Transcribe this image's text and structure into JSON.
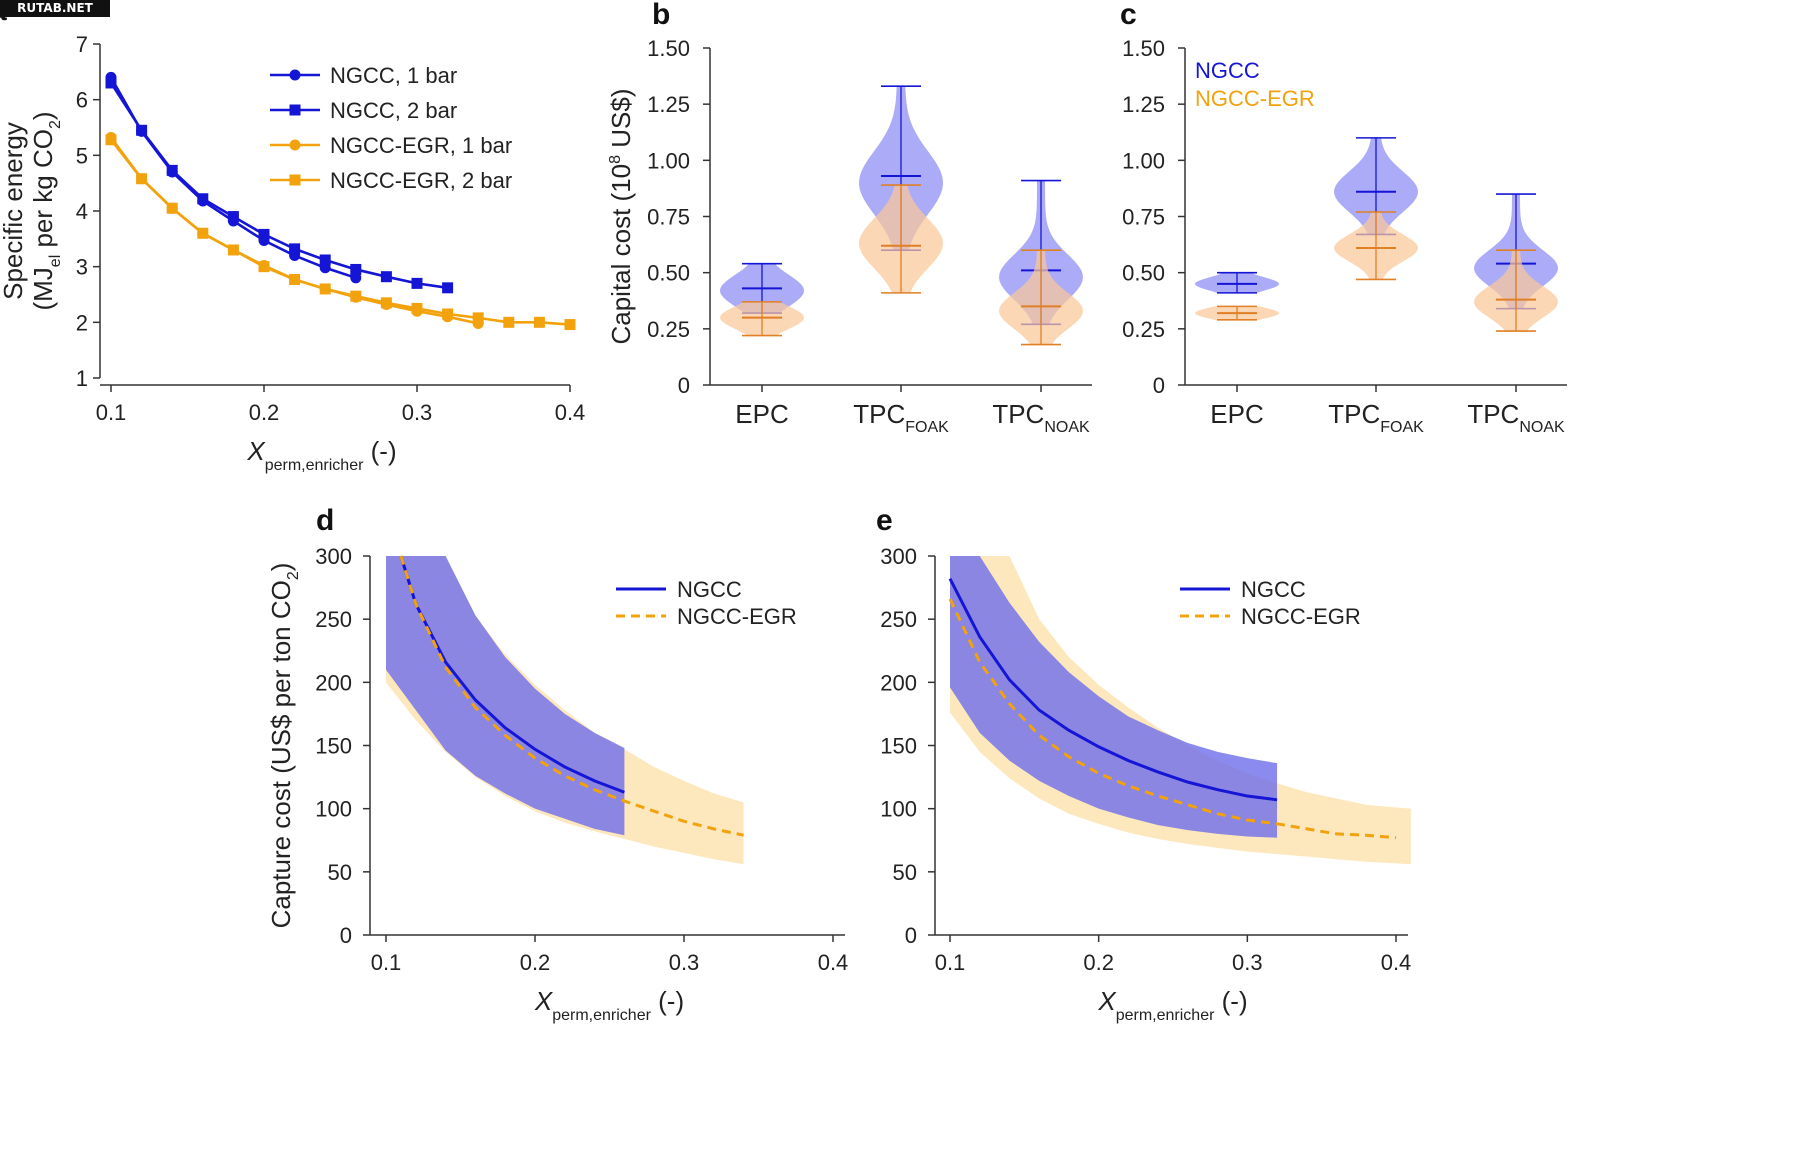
{
  "watermark": "RUTAB.NET",
  "colors": {
    "ngcc": "#1515d6",
    "ngcc_egr": "#f2a20d",
    "ngcc_violin": "#8b8bf4",
    "egr_violin": "#f9c79a",
    "ngcc_band": "#6a6aea",
    "egr_band": "#fde8bd",
    "egr_whisker": "#e07f25",
    "axis": "#333333"
  },
  "chart_data": [
    {
      "id": "a",
      "panel_letter": "a",
      "type": "line",
      "xlabel_main": "X",
      "xlabel_sub": "perm,enricher",
      "xlabel_suffix": " (-)",
      "ylabel_line1": "Specific energy",
      "ylabel_line2_pre": "(MJ",
      "ylabel_line2_sub1": "el",
      "ylabel_line2_mid": " per kg CO",
      "ylabel_line2_sub2": "2",
      "ylabel_line2_post": ")",
      "xlim": [
        0.1,
        0.4
      ],
      "ylim": [
        1,
        7
      ],
      "xticks": [
        0.1,
        0.2,
        0.3,
        0.4
      ],
      "xtick_labels": [
        "0.1",
        "0.2",
        "0.3",
        "0.4"
      ],
      "yticks": [
        1,
        2,
        3,
        4,
        5,
        6,
        7
      ],
      "ytick_labels": [
        "1",
        "2",
        "3",
        "4",
        "5",
        "6",
        "7"
      ],
      "legend_position": "top-right",
      "series": [
        {
          "name": "NGCC, 1 bar",
          "color_key": "ngcc",
          "marker": "circle",
          "x": [
            0.1,
            0.12,
            0.14,
            0.16,
            0.18,
            0.2,
            0.22,
            0.24,
            0.26
          ],
          "y": [
            6.4,
            5.43,
            4.7,
            4.18,
            3.82,
            3.47,
            3.2,
            2.98,
            2.8
          ]
        },
        {
          "name": "NGCC, 2 bar",
          "color_key": "ngcc",
          "marker": "square",
          "x": [
            0.1,
            0.12,
            0.14,
            0.16,
            0.18,
            0.2,
            0.22,
            0.24,
            0.26,
            0.28,
            0.3,
            0.32
          ],
          "y": [
            6.3,
            5.45,
            4.73,
            4.22,
            3.9,
            3.58,
            3.32,
            3.12,
            2.95,
            2.82,
            2.7,
            2.62
          ]
        },
        {
          "name": "NGCC-EGR, 1 bar",
          "color_key": "ngcc_egr",
          "marker": "circle",
          "x": [
            0.1,
            0.12,
            0.14,
            0.16,
            0.18,
            0.2,
            0.22,
            0.24,
            0.26,
            0.28,
            0.3,
            0.32,
            0.34
          ],
          "y": [
            5.32,
            4.58,
            4.05,
            3.6,
            3.3,
            3.02,
            2.77,
            2.6,
            2.45,
            2.32,
            2.2,
            2.1,
            1.98
          ]
        },
        {
          "name": "NGCC-EGR, 2 bar",
          "color_key": "ngcc_egr",
          "marker": "square",
          "x": [
            0.1,
            0.12,
            0.14,
            0.16,
            0.18,
            0.2,
            0.22,
            0.24,
            0.26,
            0.28,
            0.3,
            0.32,
            0.34,
            0.36,
            0.38,
            0.4
          ],
          "y": [
            5.28,
            4.58,
            4.05,
            3.6,
            3.3,
            3.0,
            2.77,
            2.6,
            2.47,
            2.35,
            2.25,
            2.15,
            2.08,
            2.0,
            2.0,
            1.96
          ]
        }
      ]
    },
    {
      "id": "b",
      "panel_letter": "b",
      "type": "violin",
      "ylabel_pre": "Capital cost (10",
      "ylabel_sup": "8",
      "ylabel_post": " US$)",
      "ylim": [
        0,
        1.5
      ],
      "yticks": [
        0,
        0.25,
        0.5,
        0.75,
        1.0,
        1.25,
        1.5
      ],
      "ytick_labels": [
        "0",
        "0.25",
        "0.50",
        "0.75",
        "1.00",
        "1.25",
        "1.50"
      ],
      "categories": [
        {
          "main": "EPC",
          "sub": ""
        },
        {
          "main": "TPC",
          "sub": "FOAK"
        },
        {
          "main": "TPC",
          "sub": "NOAK"
        }
      ],
      "legend": [],
      "series": [
        {
          "name": "NGCC",
          "color_key": "ngcc_violin",
          "line_key": "ngcc",
          "min": [
            0.32,
            0.6,
            0.27
          ],
          "max": [
            0.54,
            1.33,
            0.91
          ],
          "mean": [
            0.43,
            0.93,
            0.51
          ],
          "mode": [
            0.42,
            0.9,
            0.48
          ],
          "spread": [
            0.07,
            0.14,
            0.1
          ]
        },
        {
          "name": "NGCC-EGR",
          "color_key": "egr_violin",
          "line_key": "egr_whisker",
          "min": [
            0.22,
            0.41,
            0.18
          ],
          "max": [
            0.37,
            0.89,
            0.6
          ],
          "mean": [
            0.3,
            0.62,
            0.35
          ],
          "mode": [
            0.3,
            0.63,
            0.33
          ],
          "spread": [
            0.05,
            0.11,
            0.08
          ]
        }
      ]
    },
    {
      "id": "c",
      "panel_letter": "c",
      "type": "violin",
      "ylim": [
        0,
        1.5
      ],
      "yticks": [
        0,
        0.25,
        0.5,
        0.75,
        1.0,
        1.25,
        1.5
      ],
      "ytick_labels": [
        "0",
        "0.25",
        "0.50",
        "0.75",
        "1.00",
        "1.25",
        "1.50"
      ],
      "categories": [
        {
          "main": "EPC",
          "sub": ""
        },
        {
          "main": "TPC",
          "sub": "FOAK"
        },
        {
          "main": "TPC",
          "sub": "NOAK"
        }
      ],
      "legend": [
        {
          "name": "NGCC",
          "color_key": "ngcc"
        },
        {
          "name": "NGCC-EGR",
          "color_key": "ngcc_egr"
        }
      ],
      "series": [
        {
          "name": "NGCC",
          "color_key": "ngcc_violin",
          "line_key": "ngcc",
          "min": [
            0.41,
            0.67,
            0.34
          ],
          "max": [
            0.5,
            1.1,
            0.85
          ],
          "mean": [
            0.45,
            0.86,
            0.54
          ],
          "mode": [
            0.45,
            0.86,
            0.52
          ],
          "spread": [
            0.03,
            0.09,
            0.08
          ]
        },
        {
          "name": "NGCC-EGR",
          "color_key": "egr_violin",
          "line_key": "egr_whisker",
          "min": [
            0.29,
            0.47,
            0.24
          ],
          "max": [
            0.35,
            0.77,
            0.6
          ],
          "mean": [
            0.32,
            0.61,
            0.38
          ],
          "mode": [
            0.32,
            0.61,
            0.37
          ],
          "spread": [
            0.025,
            0.06,
            0.07
          ]
        }
      ]
    },
    {
      "id": "d",
      "panel_letter": "d",
      "type": "area",
      "xlabel_main": "X",
      "xlabel_sub": "perm,enricher",
      "xlabel_suffix": " (-)",
      "ylabel_pre": "Capture cost (US$ per ton CO",
      "ylabel_sub": "2",
      "ylabel_post": ")",
      "xlim": [
        0.1,
        0.4
      ],
      "ylim": [
        0,
        300
      ],
      "xticks": [
        0.1,
        0.2,
        0.3,
        0.4
      ],
      "xtick_labels": [
        "0.1",
        "0.2",
        "0.3",
        "0.4"
      ],
      "yticks": [
        0,
        50,
        100,
        150,
        200,
        250,
        300
      ],
      "ytick_labels": [
        "0",
        "50",
        "100",
        "150",
        "200",
        "250",
        "300"
      ],
      "legend_position": "top-right",
      "series": [
        {
          "name": "NGCC",
          "color_key": "ngcc",
          "dashed": false,
          "x": [
            0.11,
            0.12,
            0.14,
            0.16,
            0.18,
            0.2,
            0.22,
            0.24,
            0.26
          ],
          "y": [
            300,
            262,
            216,
            186,
            164,
            147,
            133,
            122,
            113
          ],
          "band_x": [
            0.1,
            0.14,
            0.16,
            0.18,
            0.2,
            0.22,
            0.24,
            0.26
          ],
          "band_lo": [
            210,
            146,
            126,
            112,
            100,
            92,
            84,
            79
          ],
          "band_hi": [
            300,
            300,
            253,
            220,
            195,
            175,
            160,
            148
          ]
        },
        {
          "name": "NGCC-EGR",
          "color_key": "ngcc_egr",
          "dashed": true,
          "x": [
            0.11,
            0.12,
            0.14,
            0.16,
            0.18,
            0.2,
            0.22,
            0.24,
            0.26,
            0.28,
            0.3,
            0.32,
            0.34
          ],
          "y": [
            300,
            262,
            212,
            180,
            158,
            140,
            126,
            115,
            106,
            98,
            90,
            84,
            79
          ],
          "band_x": [
            0.1,
            0.12,
            0.14,
            0.16,
            0.18,
            0.2,
            0.22,
            0.24,
            0.26,
            0.28,
            0.3,
            0.32,
            0.34
          ],
          "band_lo": [
            200,
            170,
            145,
            125,
            110,
            98,
            89,
            82,
            76,
            70,
            65,
            60,
            56
          ],
          "band_hi": [
            300,
            300,
            300,
            253,
            222,
            198,
            178,
            160,
            147,
            133,
            122,
            112,
            105
          ]
        }
      ]
    },
    {
      "id": "e",
      "panel_letter": "e",
      "type": "area",
      "xlabel_main": "X",
      "xlabel_sub": "perm,enricher",
      "xlabel_suffix": " (-)",
      "xlim": [
        0.1,
        0.4
      ],
      "ylim": [
        0,
        300
      ],
      "xticks": [
        0.1,
        0.2,
        0.3,
        0.4
      ],
      "xtick_labels": [
        "0.1",
        "0.2",
        "0.3",
        "0.4"
      ],
      "yticks": [
        0,
        50,
        100,
        150,
        200,
        250,
        300
      ],
      "ytick_labels": [
        "0",
        "50",
        "100",
        "150",
        "200",
        "250",
        "300"
      ],
      "legend_position": "top-right",
      "series": [
        {
          "name": "NGCC",
          "color_key": "ngcc",
          "dashed": false,
          "x": [
            0.1,
            0.12,
            0.14,
            0.16,
            0.18,
            0.2,
            0.22,
            0.24,
            0.26,
            0.28,
            0.3,
            0.32
          ],
          "y": [
            282,
            236,
            202,
            178,
            162,
            149,
            138,
            129,
            121,
            115,
            110,
            107
          ],
          "band_x": [
            0.1,
            0.12,
            0.14,
            0.16,
            0.18,
            0.2,
            0.22,
            0.24,
            0.26,
            0.28,
            0.3,
            0.32
          ],
          "band_lo": [
            196,
            160,
            138,
            122,
            110,
            100,
            93,
            87,
            83,
            80,
            78,
            77
          ],
          "band_hi": [
            300,
            300,
            263,
            232,
            208,
            189,
            173,
            162,
            152,
            145,
            140,
            136
          ]
        },
        {
          "name": "NGCC-EGR",
          "color_key": "ngcc_egr",
          "dashed": true,
          "x": [
            0.1,
            0.12,
            0.14,
            0.16,
            0.18,
            0.2,
            0.22,
            0.24,
            0.26,
            0.28,
            0.3,
            0.32,
            0.34,
            0.36,
            0.38,
            0.4
          ],
          "y": [
            266,
            216,
            183,
            158,
            141,
            128,
            118,
            110,
            103,
            96,
            91,
            88,
            84,
            80,
            79,
            77
          ],
          "band_x": [
            0.1,
            0.12,
            0.14,
            0.16,
            0.18,
            0.2,
            0.22,
            0.24,
            0.26,
            0.28,
            0.3,
            0.32,
            0.34,
            0.36,
            0.38,
            0.41
          ],
          "band_lo": [
            176,
            145,
            124,
            108,
            96,
            88,
            81,
            76,
            72,
            69,
            66,
            64,
            62,
            60,
            58,
            56
          ],
          "band_hi": [
            300,
            300,
            300,
            250,
            220,
            198,
            180,
            164,
            150,
            138,
            128,
            120,
            113,
            108,
            103,
            100
          ]
        }
      ]
    }
  ]
}
